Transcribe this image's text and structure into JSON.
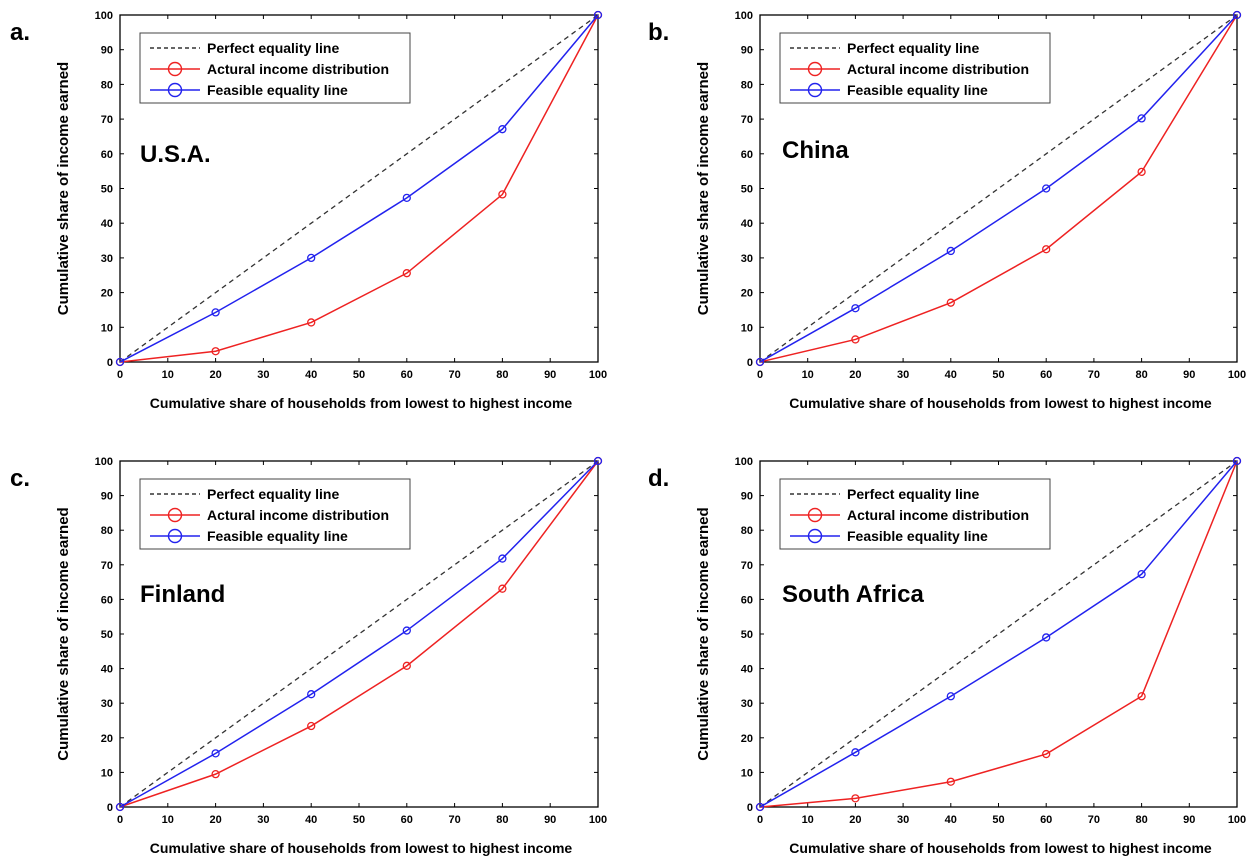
{
  "legend": {
    "perfect": "Perfect equality line",
    "actual": "Actural income distribution",
    "feasible": "Feasible equality line"
  },
  "colors": {
    "perfect": "#333333",
    "actual": "#ee2222",
    "feasible": "#2222ee",
    "axis": "#000000"
  },
  "chart_data": [
    {
      "type": "line",
      "panel_label": "a.",
      "annotation": "U.S.A.",
      "xlabel": "Cumulative share of households from lowest to highest income",
      "ylabel": "Cumulative share of income earned",
      "xlim": [
        0,
        100
      ],
      "ylim": [
        0,
        100
      ],
      "xticks": [
        0,
        10,
        20,
        30,
        40,
        50,
        60,
        70,
        80,
        90,
        100
      ],
      "yticks": [
        0,
        10,
        20,
        30,
        40,
        50,
        60,
        70,
        80,
        90,
        100
      ],
      "legend_position": "top-left",
      "grid": false,
      "x": [
        0,
        20,
        40,
        60,
        80,
        100
      ],
      "series": [
        {
          "key": "perfect",
          "style": "dashed",
          "values": [
            0,
            20,
            40,
            60,
            80,
            100
          ]
        },
        {
          "key": "actual",
          "style": "solid-markers",
          "values": [
            0,
            3.1,
            11.4,
            25.6,
            48.3,
            100
          ]
        },
        {
          "key": "feasible",
          "style": "solid-markers",
          "values": [
            0,
            14.3,
            30.0,
            47.3,
            67.1,
            100
          ]
        }
      ]
    },
    {
      "type": "line",
      "panel_label": "b.",
      "annotation": "China",
      "xlabel": "Cumulative share of households from lowest to highest income",
      "ylabel": "Cumulative share of income earned",
      "xlim": [
        0,
        100
      ],
      "ylim": [
        0,
        100
      ],
      "xticks": [
        0,
        10,
        20,
        30,
        40,
        50,
        60,
        70,
        80,
        90,
        100
      ],
      "yticks": [
        0,
        10,
        20,
        30,
        40,
        50,
        60,
        70,
        80,
        90,
        100
      ],
      "legend_position": "top-left",
      "grid": false,
      "x": [
        0,
        20,
        40,
        60,
        80,
        100
      ],
      "series": [
        {
          "key": "perfect",
          "style": "dashed",
          "values": [
            0,
            20,
            40,
            60,
            80,
            100
          ]
        },
        {
          "key": "actual",
          "style": "solid-markers",
          "values": [
            0,
            6.5,
            17.1,
            32.5,
            54.8,
            100
          ]
        },
        {
          "key": "feasible",
          "style": "solid-markers",
          "values": [
            0,
            15.5,
            32.0,
            50.0,
            70.2,
            100
          ]
        }
      ]
    },
    {
      "type": "line",
      "panel_label": "c.",
      "annotation": "Finland",
      "xlabel": "Cumulative share of households from lowest to highest income",
      "ylabel": "Cumulative share of income earned",
      "xlim": [
        0,
        100
      ],
      "ylim": [
        0,
        100
      ],
      "xticks": [
        0,
        10,
        20,
        30,
        40,
        50,
        60,
        70,
        80,
        90,
        100
      ],
      "yticks": [
        0,
        10,
        20,
        30,
        40,
        50,
        60,
        70,
        80,
        90,
        100
      ],
      "legend_position": "top-left",
      "grid": false,
      "x": [
        0,
        20,
        40,
        60,
        80,
        100
      ],
      "series": [
        {
          "key": "perfect",
          "style": "dashed",
          "values": [
            0,
            20,
            40,
            60,
            80,
            100
          ]
        },
        {
          "key": "actual",
          "style": "solid-markers",
          "values": [
            0,
            9.5,
            23.4,
            40.8,
            63.1,
            100
          ]
        },
        {
          "key": "feasible",
          "style": "solid-markers",
          "values": [
            0,
            15.5,
            32.6,
            51.0,
            71.8,
            100
          ]
        }
      ]
    },
    {
      "type": "line",
      "panel_label": "d.",
      "annotation": "South Africa",
      "xlabel": "Cumulative share of households from lowest to highest income",
      "ylabel": "Cumulative share of income earned",
      "xlim": [
        0,
        100
      ],
      "ylim": [
        0,
        100
      ],
      "xticks": [
        0,
        10,
        20,
        30,
        40,
        50,
        60,
        70,
        80,
        90,
        100
      ],
      "yticks": [
        0,
        10,
        20,
        30,
        40,
        50,
        60,
        70,
        80,
        90,
        100
      ],
      "legend_position": "top-left",
      "grid": false,
      "x": [
        0,
        20,
        40,
        60,
        80,
        100
      ],
      "series": [
        {
          "key": "perfect",
          "style": "dashed",
          "values": [
            0,
            20,
            40,
            60,
            80,
            100
          ]
        },
        {
          "key": "actual",
          "style": "solid-markers",
          "values": [
            0,
            2.5,
            7.3,
            15.3,
            32.0,
            100
          ]
        },
        {
          "key": "feasible",
          "style": "solid-markers",
          "values": [
            0,
            15.8,
            32.0,
            49.0,
            67.3,
            100
          ]
        }
      ]
    }
  ]
}
